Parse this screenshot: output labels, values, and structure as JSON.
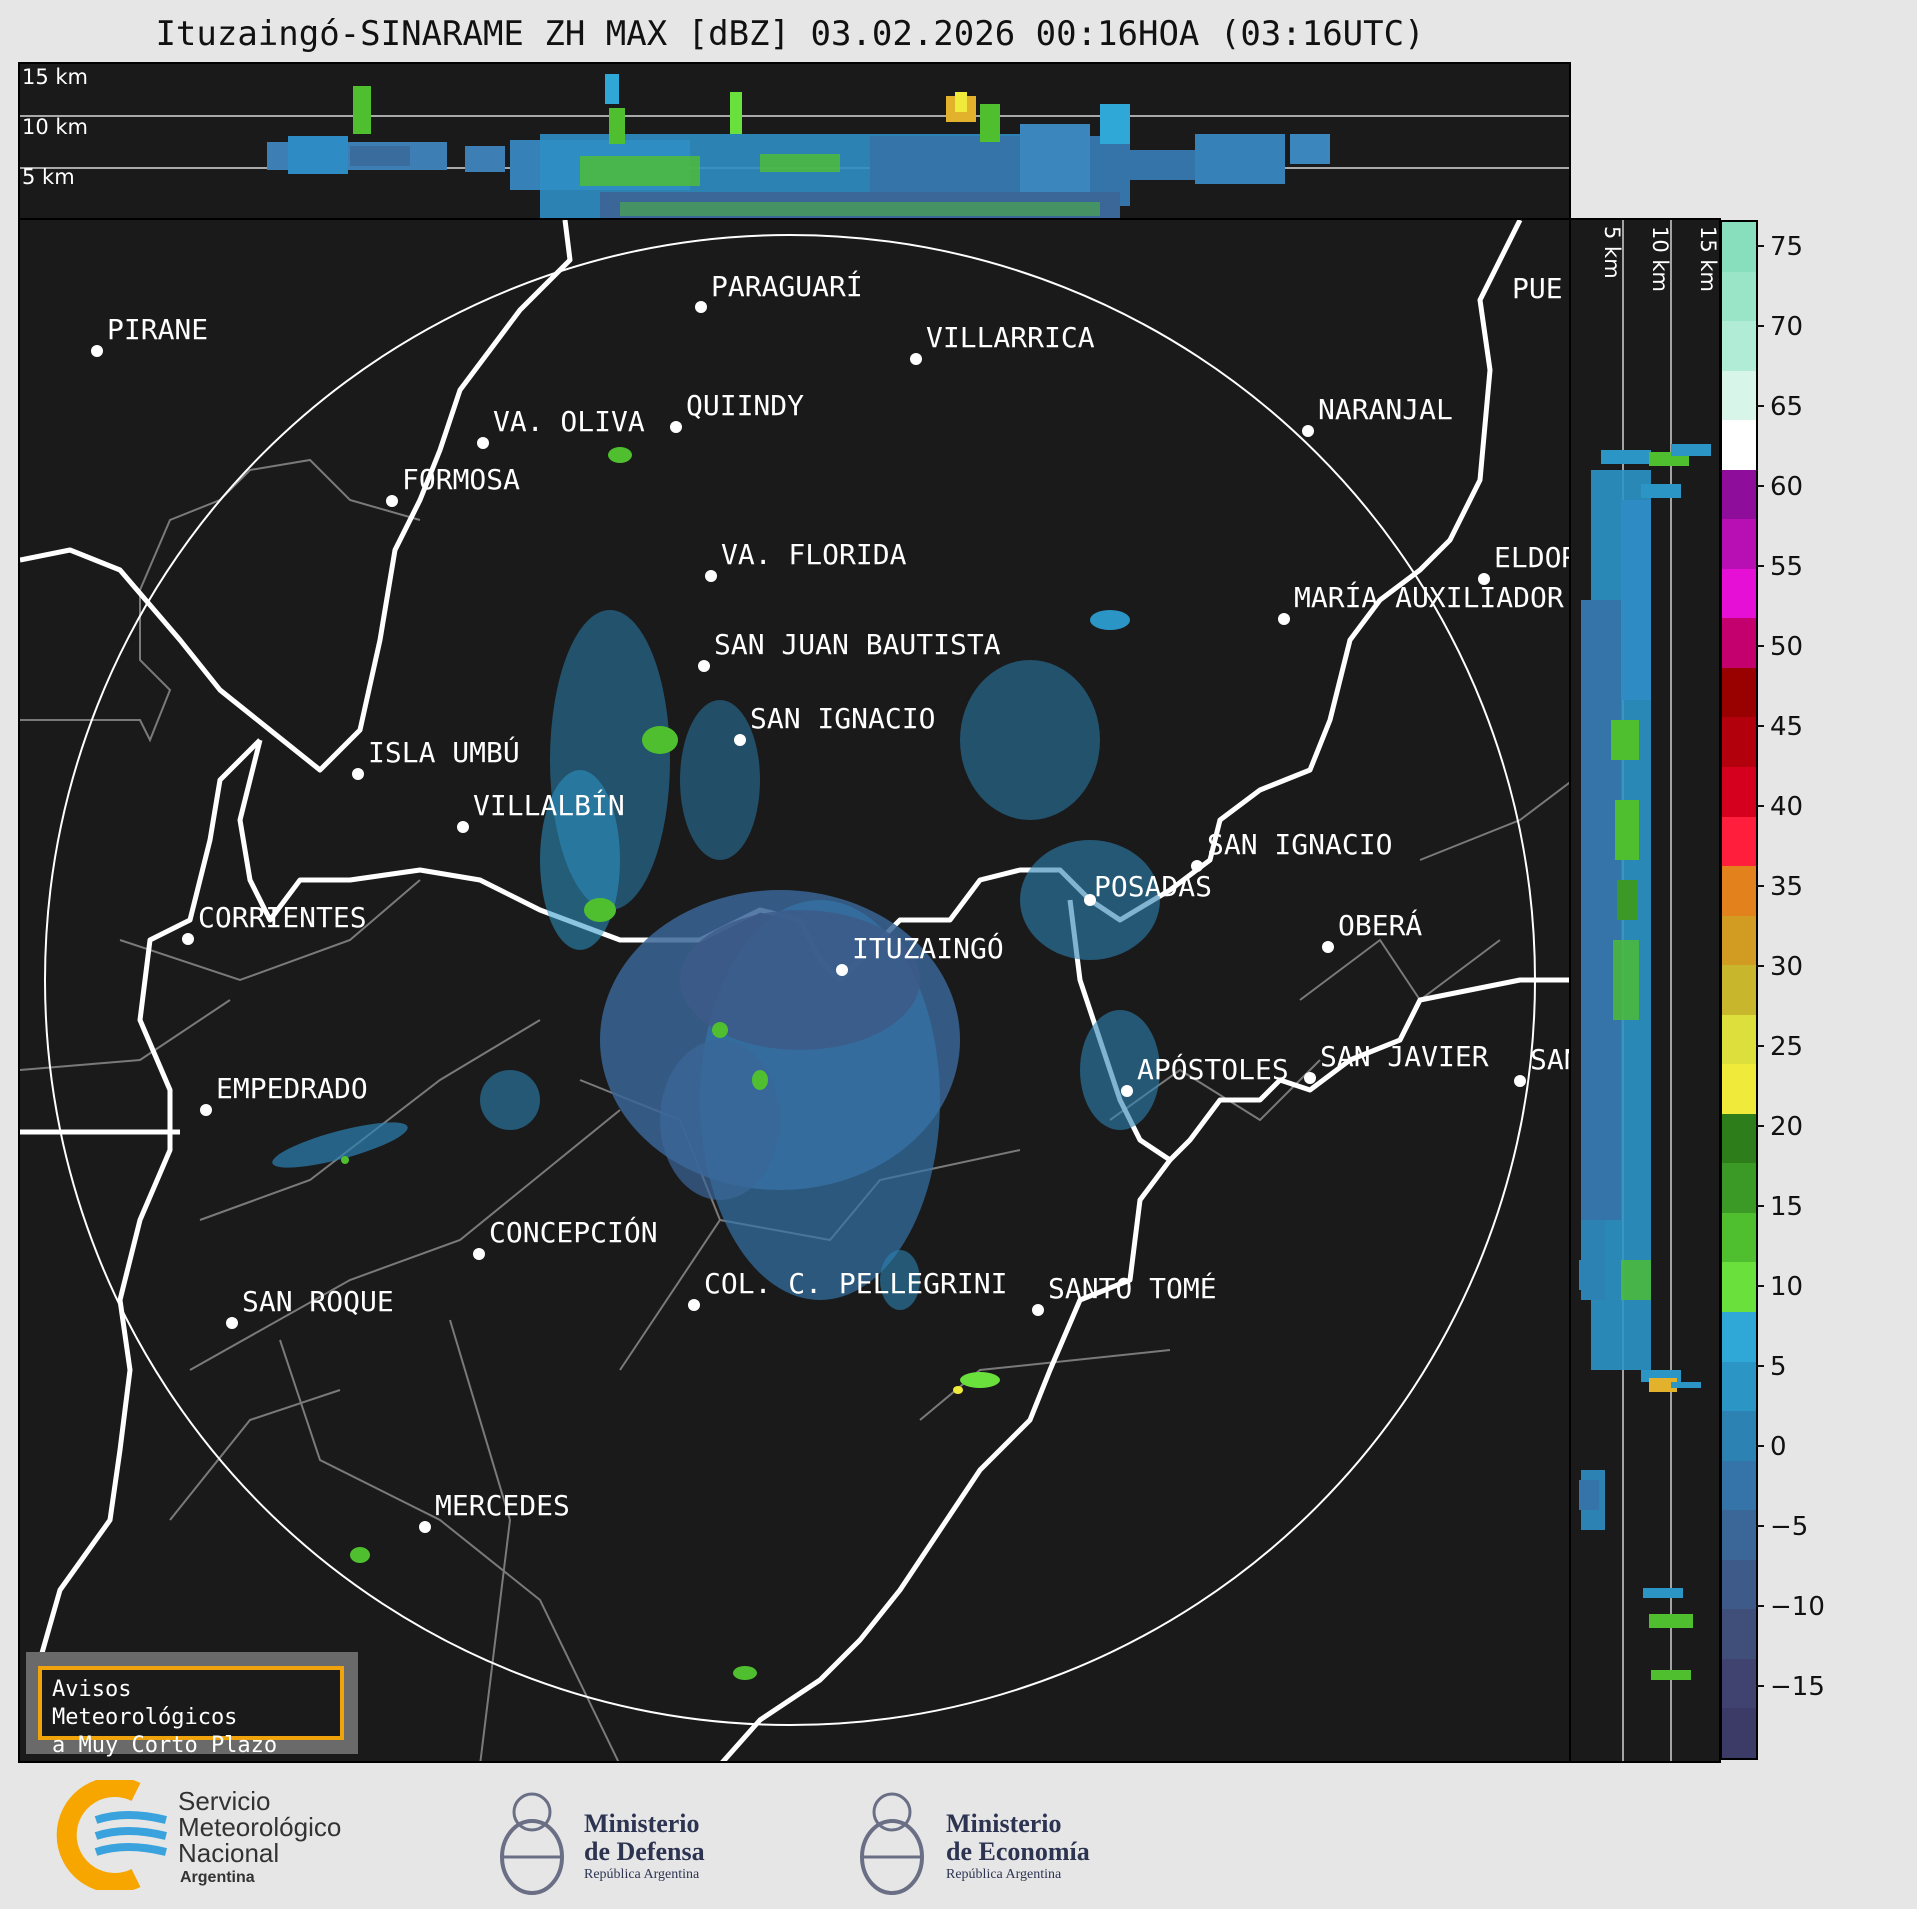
{
  "title": "Ituzaingó-SINARAME ZH MAX [dBZ] 03.02.2026 00:16HOA (03:16UTC)",
  "top_panel": {
    "altitude_labels": [
      "15 km",
      "10 km",
      "5 km"
    ]
  },
  "side_panel": {
    "altitude_labels": [
      "5 km",
      "10 km",
      "15 km"
    ]
  },
  "colorbar": {
    "ticks": [
      "75",
      "70",
      "65",
      "60",
      "55",
      "50",
      "45",
      "40",
      "35",
      "30",
      "25",
      "20",
      "15",
      "10",
      "5",
      "0",
      "−5",
      "−10",
      "−15"
    ],
    "colors": [
      "#88dfbe",
      "#9ae5c8",
      "#b0ecd6",
      "#d8f5ea",
      "#ffffff",
      "#8e0d9a",
      "#b80fb5",
      "#e60fd6",
      "#c4006e",
      "#990000",
      "#b3000d",
      "#d4001d",
      "#ff1e3b",
      "#e3821c",
      "#d29b22",
      "#c8b62c",
      "#dde03c",
      "#f0ea3a",
      "#2e7d1b",
      "#3b9a25",
      "#4fbf2f",
      "#6ae03c",
      "#2fa8d8",
      "#2b95c6",
      "#2c82b3",
      "#3574a8",
      "#3a6698",
      "#3d5a88",
      "#404e7a",
      "#404370",
      "#3c3a66"
    ]
  },
  "map": {
    "cities": [
      {
        "name": "PARAGUARÍ"
      },
      {
        "name": "PIRANE"
      },
      {
        "name": "VILLARRICA"
      },
      {
        "name": "QUIINDY"
      },
      {
        "name": "VA. OLIVA"
      },
      {
        "name": "NARANJAL"
      },
      {
        "name": "FORMOSA"
      },
      {
        "name": "VA. FLORIDA"
      },
      {
        "name": "ELDOR"
      },
      {
        "name": "MARÍA AUXILIADOR"
      },
      {
        "name": "SAN JUAN BAUTISTA"
      },
      {
        "name": "SAN IGNACIO"
      },
      {
        "name": "ISLA UMBÚ"
      },
      {
        "name": "VILLALBÍN"
      },
      {
        "name": "SAN IGNACIO"
      },
      {
        "name": "POSADAS"
      },
      {
        "name": "CORRIENTES"
      },
      {
        "name": "ITUZAINGÓ"
      },
      {
        "name": "OBERÁ"
      },
      {
        "name": "APÓSTOLES"
      },
      {
        "name": "SAN JAVIER"
      },
      {
        "name": "SAN"
      },
      {
        "name": "EMPEDRADO"
      },
      {
        "name": "CONCEPCIÓN"
      },
      {
        "name": "COL. C. PELLEGRINI"
      },
      {
        "name": "SANTO TOMÉ"
      },
      {
        "name": "SAN ROQUE"
      },
      {
        "name": "MERCEDES"
      },
      {
        "name": "PUE"
      }
    ]
  },
  "avisos": {
    "line1": "Avisos Meteorológicos",
    "line2": "a Muy Corto Plazo"
  },
  "logos": {
    "smn": {
      "line1": "Servicio",
      "line2": "Meteorológico",
      "line3": "Nacional",
      "line4": "Argentina"
    },
    "defensa": {
      "line1": "Ministerio",
      "line2": "de Defensa",
      "line3": "República Argentina"
    },
    "economia": {
      "line1": "Ministerio",
      "line2": "de Economía",
      "line3": "República Argentina"
    }
  },
  "colors": {
    "background": "#e6e6e6",
    "panel": "#1a1a1a",
    "smn_orange": "#f7a600",
    "smn_blue": "#3aa3dd",
    "border_lines": "#ffffff",
    "province_lines": "#7a7a7a"
  }
}
